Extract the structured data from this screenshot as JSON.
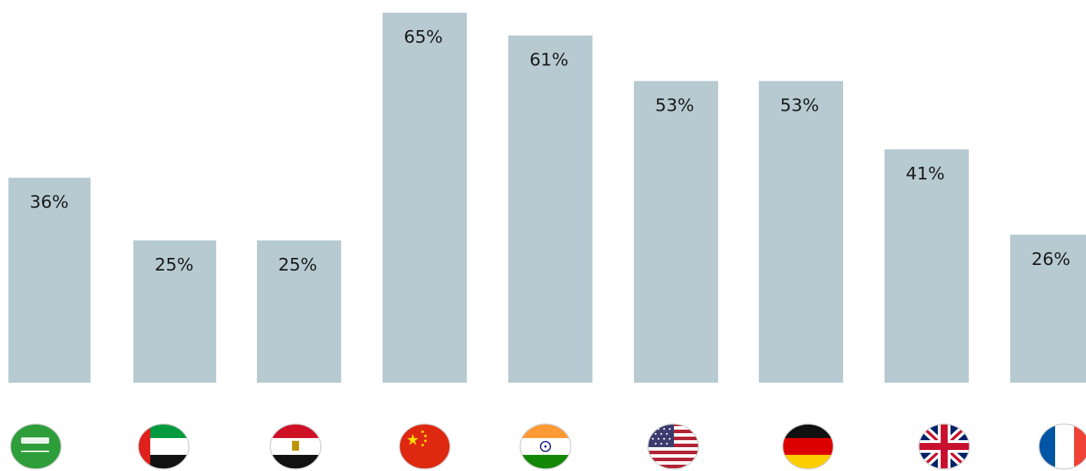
{
  "chart_data": {
    "type": "bar",
    "categories": [
      "Saudi Arabia",
      "United Arab Emirates",
      "Egypt",
      "China",
      "India",
      "United States",
      "Germany",
      "United Kingdom",
      "France"
    ],
    "values": [
      36,
      25,
      25,
      65,
      61,
      53,
      53,
      41,
      26
    ],
    "value_labels": [
      "36%",
      "25%",
      "25%",
      "65%",
      "61%",
      "53%",
      "53%",
      "41%",
      "26%"
    ],
    "flag_icons": [
      "saudi-arabia-flag-icon",
      "uae-flag-icon",
      "egypt-flag-icon",
      "china-flag-icon",
      "india-flag-icon",
      "usa-flag-icon",
      "germany-flag-icon",
      "uk-flag-icon",
      "france-flag-icon"
    ],
    "ylim": [
      0,
      66
    ],
    "bar_color": "#b7cad2",
    "grid": false,
    "title": "",
    "xlabel": "",
    "ylabel": ""
  }
}
